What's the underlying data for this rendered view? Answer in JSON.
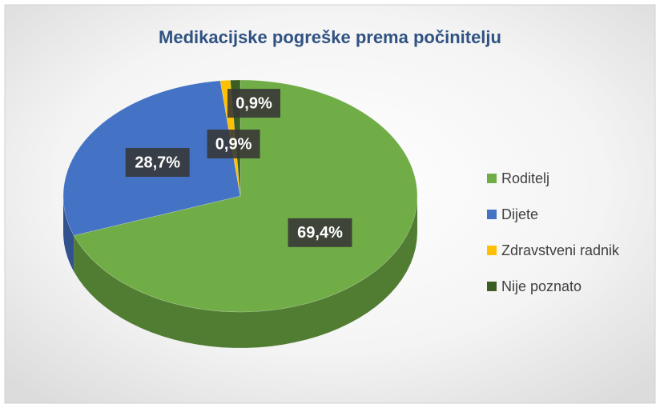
{
  "chart_data": {
    "type": "pie3d",
    "title": "Medikacijske pogreške prema počinitelju",
    "categories": [
      "Roditelj",
      "Dijete",
      "Zdravstveni radnik",
      "Nije poznato"
    ],
    "values": [
      69.4,
      28.7,
      0.9,
      0.9
    ],
    "value_labels": [
      "69,4%",
      "28,7%",
      "0,9%",
      "0,9%"
    ],
    "colors": [
      "#70ad47",
      "#4472c4",
      "#ffc000",
      "#3b5f23"
    ],
    "legend": "right"
  }
}
